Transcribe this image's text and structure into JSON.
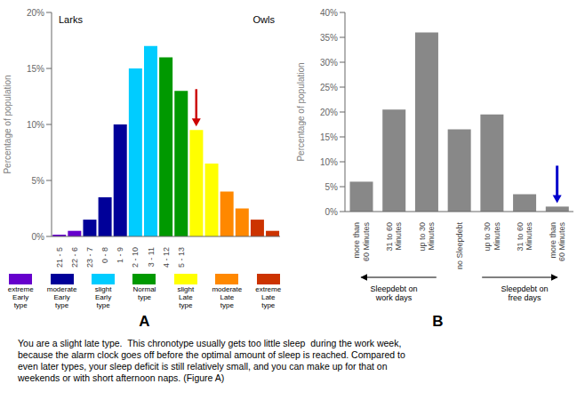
{
  "chart_data": [
    {
      "type": "bar",
      "title": "A",
      "categories": [
        "21 - 5",
        "22 - 6",
        "23 - 7",
        "0 - 8",
        "1 - 9",
        "2 - 10",
        "3 - 11",
        "4 - 12",
        "5 - 13",
        null,
        null,
        null,
        null,
        null,
        null
      ],
      "stacked": true,
      "series": [
        {
          "name": "extreme\nEarly\ntype",
          "color": "#6600cc",
          "values": [
            0.15,
            0.5,
            null,
            null,
            null,
            null,
            null,
            null,
            null,
            null,
            null,
            null,
            null,
            null,
            null
          ]
        },
        {
          "name": "moderate\nEarly\ntype",
          "color": "#000099",
          "values": [
            null,
            null,
            1.5,
            3.5,
            10.0,
            null,
            null,
            null,
            null,
            null,
            null,
            null,
            null,
            null,
            null
          ]
        },
        {
          "name": "slight\nEarly\ntype",
          "color": "#00ccff",
          "values": [
            null,
            null,
            null,
            null,
            null,
            15.0,
            17.0,
            null,
            null,
            null,
            null,
            null,
            null,
            null,
            null
          ]
        },
        {
          "name": "Normal\ntype",
          "color": "#009900",
          "values": [
            null,
            null,
            null,
            null,
            null,
            null,
            null,
            16.0,
            13.0,
            null,
            null,
            null,
            null,
            null,
            null
          ]
        },
        {
          "name": "slight\nLate\ntype",
          "color": "#ffff00",
          "values": [
            null,
            null,
            null,
            null,
            null,
            null,
            null,
            null,
            null,
            9.5,
            6.5,
            null,
            null,
            null,
            null
          ]
        },
        {
          "name": "moderate\nLate\ntype",
          "color": "#ff8800",
          "values": [
            null,
            null,
            null,
            null,
            null,
            null,
            null,
            null,
            null,
            null,
            null,
            4.0,
            2.5,
            null,
            null
          ]
        },
        {
          "name": "extreme\nLate\ntype",
          "color": "#cc3300",
          "values": [
            null,
            null,
            null,
            null,
            null,
            null,
            null,
            null,
            null,
            null,
            null,
            null,
            null,
            1.5,
            0.5
          ]
        }
      ],
      "ylabel": "Percentage of population",
      "ylim": [
        0,
        20
      ],
      "yticks": [
        {
          "value": 0,
          "label": "0%"
        },
        {
          "value": 5,
          "label": "5%"
        },
        {
          "value": 10,
          "label": "10%"
        },
        {
          "value": 15,
          "label": "15%"
        },
        {
          "value": 20,
          "label": "20%"
        }
      ],
      "annotations": [
        {
          "text": "Larks"
        },
        {
          "text": "Owls"
        },
        {
          "arrow_at": 9,
          "color": "#cc0000"
        }
      ]
    },
    {
      "type": "bar",
      "title": "B",
      "categories": [
        "more than\n60 Minutes",
        "31 to 60\nMinutes",
        "up to 30\nMinutes",
        "no Sleepdebt",
        "up to 30\nMinutes",
        "31 to 60\nMinutes",
        "more than\n60 Minutes"
      ],
      "values": [
        6.0,
        20.5,
        36.0,
        16.5,
        19.5,
        3.5,
        1.0
      ],
      "color": "#888888",
      "ylabel": "Percentage of population",
      "ylim": [
        0,
        40
      ],
      "yticks": [
        {
          "value": 0,
          "label": "0%"
        },
        {
          "value": 5,
          "label": "5%"
        },
        {
          "value": 10,
          "label": "10%"
        },
        {
          "value": 15,
          "label": "15%"
        },
        {
          "value": 20,
          "label": "20%"
        },
        {
          "value": 25,
          "label": "25%"
        },
        {
          "value": 30,
          "label": "30%"
        },
        {
          "value": 35,
          "label": "35%"
        },
        {
          "value": 40,
          "label": "40%"
        }
      ],
      "annotations": [
        {
          "text": "Sleepdebt on\nwork days"
        },
        {
          "text": "Sleepdebt on\nfree days"
        },
        {
          "arrow_at": 6,
          "color": "#0000cc"
        }
      ]
    }
  ],
  "text_body": "You are a slight late type.  This chronotype usually gets too little sleep  during the work week,\nbecause the alarm clock goes off before the optimal amount of sleep is reached. Compared to\neven later types, your sleep deficit is still relatively small, and you can make up for that on\nweekends or with short afternoon naps. (Figure A)"
}
